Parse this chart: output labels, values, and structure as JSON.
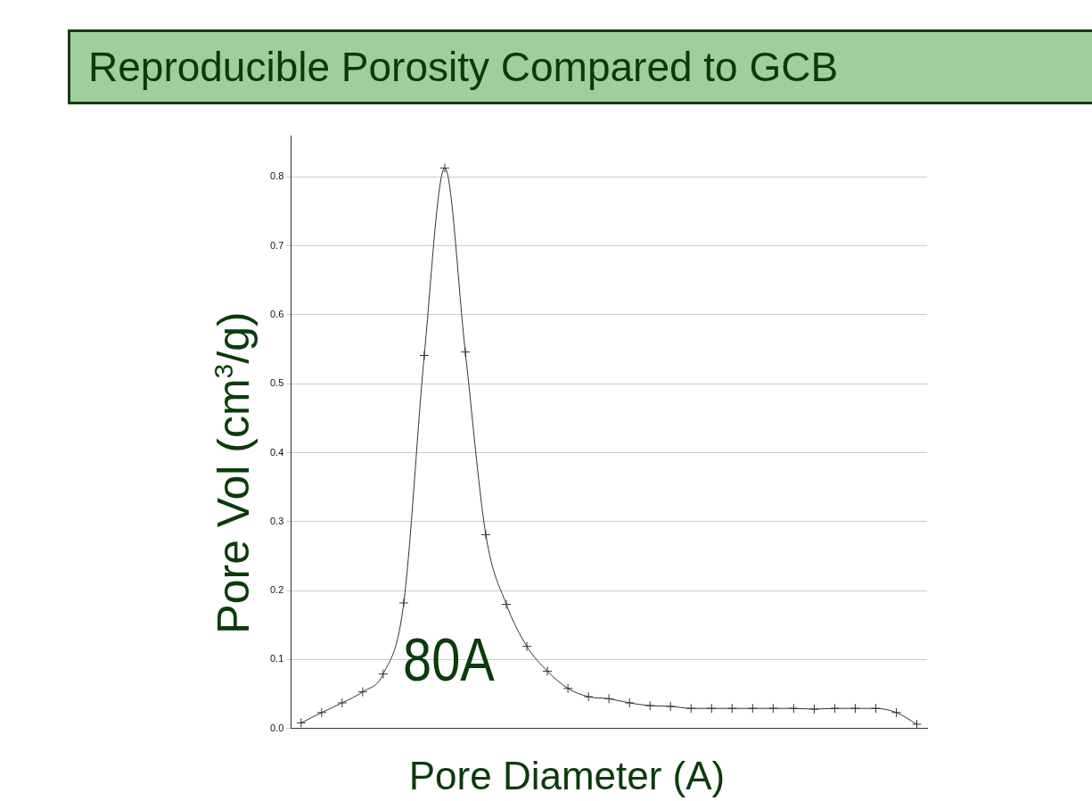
{
  "chart_data": {
    "type": "line",
    "title": "Reproducible Porosity Compared to GCB",
    "xlabel": "Pore Diameter (A)",
    "ylabel": "Pore Vol (cm$^{3}$/g)",
    "categories": [
      null,
      null,
      null,
      null,
      null,
      null,
      null,
      null,
      null,
      null,
      null,
      null,
      null,
      null,
      null,
      null,
      null,
      null,
      null,
      null,
      null,
      null,
      null,
      null,
      null,
      null,
      null,
      null,
      null,
      null,
      null
    ],
    "series": [
      {
        "color": "#333333",
        "values": [
          0.008,
          0.023,
          0.037,
          0.053,
          0.079,
          0.182,
          0.541,
          0.813,
          0.546,
          0.281,
          0.18,
          0.119,
          0.083,
          0.058,
          0.046,
          0.043,
          0.037,
          0.033,
          0.032,
          0.029,
          0.029,
          0.029,
          0.029,
          0.029,
          0.029,
          0.028,
          0.029,
          0.029,
          0.029,
          0.023,
          0.006
        ]
      }
    ],
    "ylim": [
      0,
      0.86
    ],
    "yticks": [
      {
        "value": 0,
        "label": "0.0"
      },
      0.1,
      0.2,
      0.3,
      0.4,
      0.5,
      0.6,
      0.7,
      0.8
    ],
    "grid": "y",
    "marker": "cross",
    "line_style": "solid",
    "legend": false,
    "annotations": [
      "80A"
    ]
  }
}
